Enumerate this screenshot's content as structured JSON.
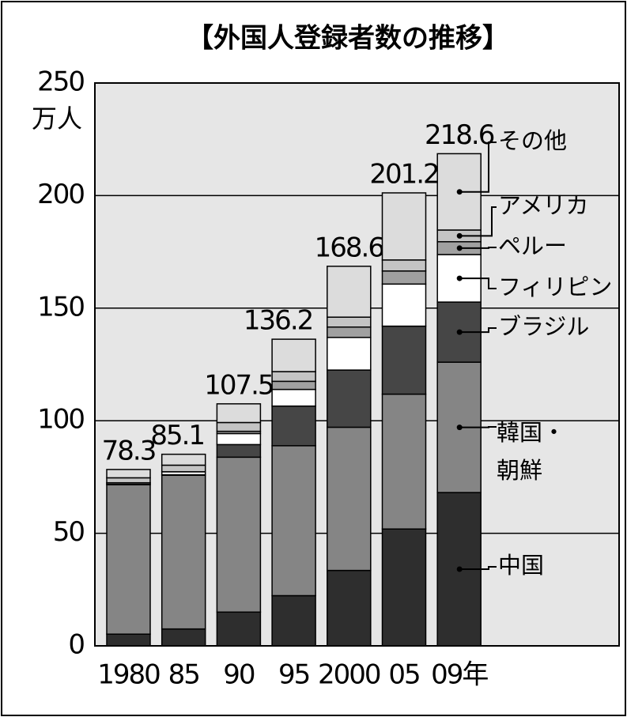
{
  "chart_data": {
    "type": "stacked_bar",
    "title": "【外国人登録者数の推移】",
    "y_unit": "万人",
    "categories": [
      "1980",
      "85",
      "90",
      "95",
      "2000",
      "05",
      "09年"
    ],
    "totals": [
      78.3,
      85.1,
      107.5,
      136.2,
      168.6,
      201.2,
      218.6
    ],
    "series": [
      {
        "name": "中国",
        "color": "#2e2e2e",
        "values": [
          5.2,
          7.5,
          15.0,
          22.3,
          33.5,
          51.9,
          68.1
        ]
      },
      {
        "name": "韓国・朝鮮",
        "color": "#858585",
        "values": [
          66.4,
          68.3,
          68.8,
          66.6,
          63.6,
          59.9,
          57.9
        ]
      },
      {
        "name": "ブラジル",
        "color": "#464646",
        "values": [
          0.2,
          0.2,
          5.6,
          17.6,
          25.4,
          30.2,
          26.7
        ]
      },
      {
        "name": "フィリピン",
        "color": "#ffffff",
        "values": [
          0.6,
          1.3,
          4.9,
          7.4,
          14.5,
          18.7,
          21.1
        ]
      },
      {
        "name": "ペルー",
        "color": "#a0a0a0",
        "values": [
          0.04,
          0.05,
          1.0,
          3.6,
          4.6,
          5.8,
          5.7
        ]
      },
      {
        "name": "アメリカ",
        "color": "#c4c4c4",
        "values": [
          2.2,
          2.9,
          3.9,
          4.3,
          4.4,
          4.9,
          5.2
        ]
      },
      {
        "name": "その他",
        "color": "#dcdcdc",
        "values": [
          3.7,
          4.85,
          8.3,
          14.4,
          22.6,
          29.8,
          33.9
        ]
      }
    ],
    "ylim": [
      0,
      250
    ],
    "yticks": [
      0,
      50,
      100,
      150,
      200,
      250
    ],
    "grid": true
  }
}
